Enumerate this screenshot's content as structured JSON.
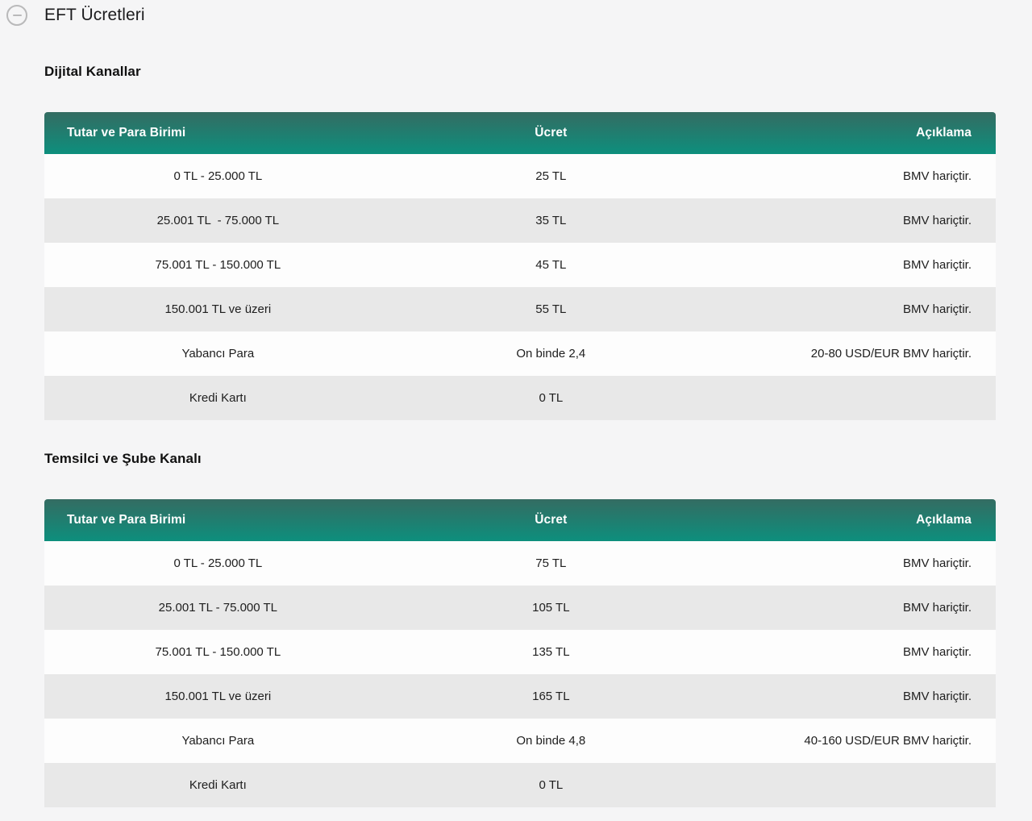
{
  "page": {
    "title": "EFT Ücretleri"
  },
  "colors": {
    "page_background": "#f5f5f6",
    "table_header_gradient_top": "#346c62",
    "table_header_gradient_bottom": "#0d8f7d",
    "row_light": "#fdfdfd",
    "row_dark": "#e8e8e8",
    "header_text": "#ffffff",
    "cell_text": "#1e1e1e",
    "collapse_icon_gray": "#b9b9ba"
  },
  "icons": {
    "collapse": "minus-circle-icon"
  },
  "sections": [
    {
      "title": "Dijital Kanallar",
      "table": {
        "columns": [
          "Tutar ve Para Birimi",
          "Ücret",
          "Açıklama"
        ],
        "rows": [
          [
            "0 TL - 25.000 TL",
            "25 TL",
            "BMV hariçtir."
          ],
          [
            "25.001 TL  - 75.000 TL",
            "35 TL",
            "BMV hariçtir."
          ],
          [
            "75.001 TL - 150.000 TL",
            "45 TL",
            "BMV hariçtir."
          ],
          [
            "150.001 TL ve üzeri",
            "55 TL",
            "BMV hariçtir."
          ],
          [
            "Yabancı Para",
            "On binde 2,4",
            "20-80 USD/EUR BMV hariçtir."
          ],
          [
            "Kredi Kartı",
            "0 TL",
            ""
          ]
        ]
      }
    },
    {
      "title": "Temsilci ve Şube Kanalı",
      "table": {
        "columns": [
          "Tutar ve Para Birimi",
          "Ücret",
          "Açıklama"
        ],
        "rows": [
          [
            "0 TL - 25.000 TL",
            "75 TL",
            "BMV hariçtir."
          ],
          [
            "25.001 TL - 75.000 TL",
            "105 TL",
            "BMV hariçtir."
          ],
          [
            "75.001 TL - 150.000 TL",
            "135 TL",
            "BMV hariçtir."
          ],
          [
            "150.001 TL ve üzeri",
            "165 TL",
            "BMV hariçtir."
          ],
          [
            "Yabancı Para",
            "On binde 4,8",
            "40-160 USD/EUR BMV hariçtir."
          ],
          [
            "Kredi Kartı",
            "0 TL",
            ""
          ]
        ]
      }
    }
  ]
}
